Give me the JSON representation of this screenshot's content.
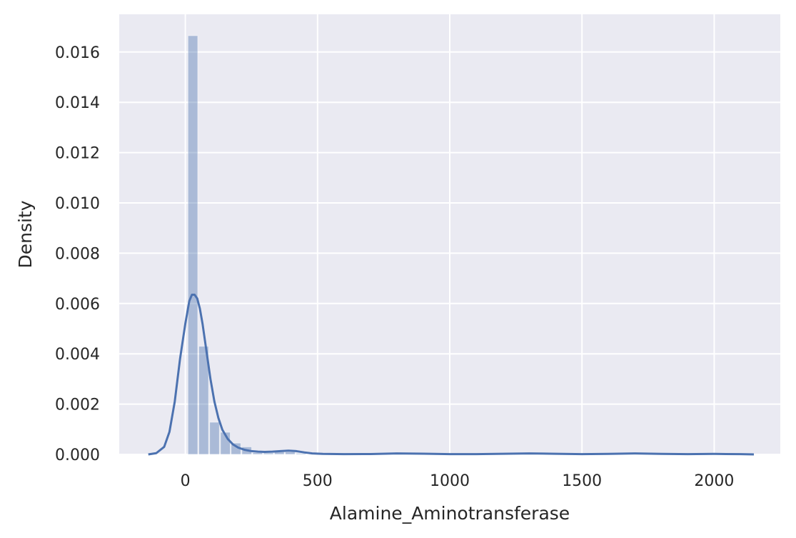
{
  "chart_data": {
    "type": "bar",
    "title": "",
    "xlabel": "Alamine_Aminotransferase",
    "ylabel": "Density",
    "xlim": [
      -250,
      2250
    ],
    "ylim": [
      0,
      0.0175
    ],
    "x_ticks": [
      0,
      500,
      1000,
      1500,
      2000
    ],
    "x_tick_labels": [
      "0",
      "500",
      "1000",
      "1500",
      "2000"
    ],
    "y_ticks": [
      0,
      0.002,
      0.004,
      0.006,
      0.008,
      0.01,
      0.012,
      0.014,
      0.016
    ],
    "y_tick_labels": [
      "0.000",
      "0.002",
      "0.004",
      "0.006",
      "0.008",
      "0.010",
      "0.012",
      "0.014",
      "0.016"
    ],
    "grid": true,
    "histogram": {
      "bin_width": 40.9,
      "bins": [
        {
          "x0": 10,
          "value": 0.01665
        },
        {
          "x0": 51,
          "value": 0.0043
        },
        {
          "x0": 92,
          "value": 0.00128
        },
        {
          "x0": 133,
          "value": 0.00088
        },
        {
          "x0": 173,
          "value": 0.00045
        },
        {
          "x0": 214,
          "value": 0.0003
        },
        {
          "x0": 255,
          "value": 7e-05
        },
        {
          "x0": 296,
          "value": 6e-05
        },
        {
          "x0": 337,
          "value": 0.0001
        },
        {
          "x0": 378,
          "value": 0.0001
        },
        {
          "x0": 419,
          "value": 4e-05
        },
        {
          "x0": 787,
          "value": 2e-05
        },
        {
          "x0": 1236,
          "value": 2e-05
        },
        {
          "x0": 1645,
          "value": 2e-05
        },
        {
          "x0": 2013,
          "value": 2e-05
        }
      ]
    },
    "kde": {
      "x": [
        -140,
        -110,
        -80,
        -60,
        -40,
        -20,
        0,
        15,
        25,
        35,
        45,
        55,
        65,
        80,
        95,
        110,
        125,
        140,
        160,
        180,
        200,
        225,
        250,
        275,
        300,
        330,
        360,
        390,
        420,
        450,
        480,
        520,
        600,
        700,
        800,
        900,
        1000,
        1100,
        1200,
        1300,
        1400,
        1500,
        1600,
        1700,
        1800,
        1900,
        2000,
        2100,
        2150
      ],
      "y": [
        0.0,
        5e-05,
        0.0003,
        0.0009,
        0.0021,
        0.0038,
        0.0052,
        0.0061,
        0.00635,
        0.00635,
        0.0062,
        0.0058,
        0.0052,
        0.0041,
        0.003,
        0.0021,
        0.00145,
        0.00098,
        0.00062,
        0.0004,
        0.00027,
        0.00018,
        0.00013,
        0.00011,
        0.0001,
        0.00011,
        0.00013,
        0.00015,
        0.00013,
        8e-05,
        4e-05,
        2e-05,
        1e-05,
        1.5e-05,
        4e-05,
        3e-05,
        1e-05,
        1e-05,
        2.5e-05,
        4e-05,
        2.5e-05,
        1e-05,
        2e-05,
        4e-05,
        2e-05,
        1e-05,
        2e-05,
        1e-05,
        0.0
      ]
    },
    "colors": {
      "background": "#eaeaf2",
      "grid": "#ffffff",
      "bar": "#4c72b0",
      "line": "#4c72b0",
      "text": "#262626"
    }
  }
}
